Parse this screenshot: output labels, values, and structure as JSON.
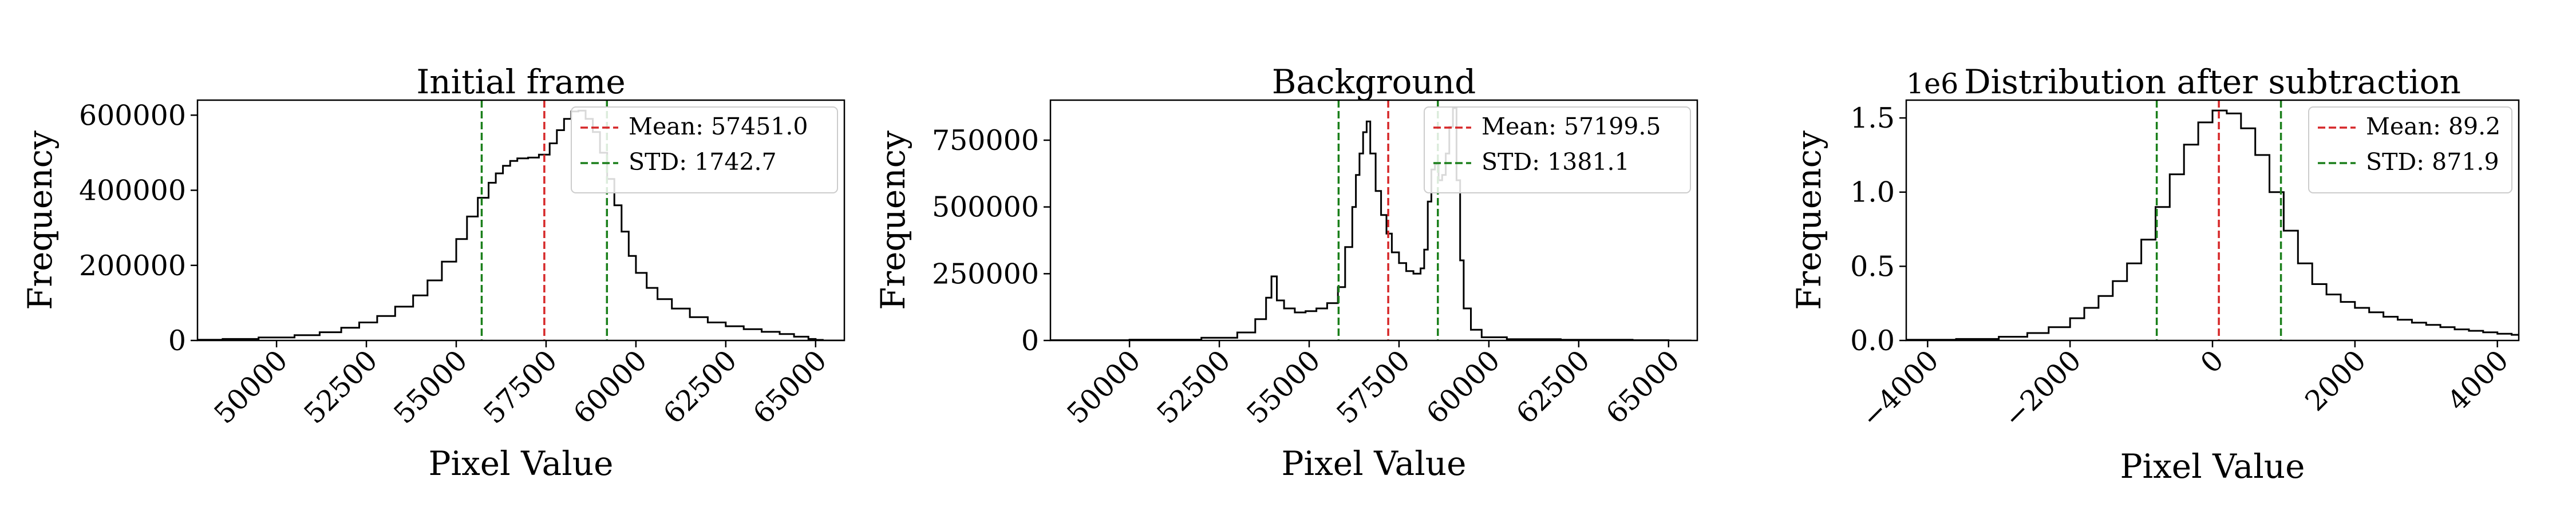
{
  "chart_data": [
    {
      "type": "histogram",
      "title": "Initial frame",
      "xlabel": "Pixel Value",
      "ylabel": "Frequency",
      "xlim": [
        47800,
        65800
      ],
      "ylim": [
        0,
        640000
      ],
      "xticks": [
        "50000",
        "52500",
        "55000",
        "57500",
        "60000",
        "62500",
        "65000"
      ],
      "yticks": [
        "0",
        "200000",
        "400000",
        "600000"
      ],
      "y_offset": "",
      "legend_position": "upper right",
      "histogram": {
        "x": [
          47800,
          48500,
          49500,
          50500,
          51200,
          51800,
          52300,
          52800,
          53300,
          53800,
          54200,
          54600,
          55000,
          55300,
          55600,
          55900,
          56100,
          56300,
          56500,
          56700,
          57000,
          57300,
          57600,
          57800,
          58000,
          58200,
          58400,
          58600,
          58800,
          59000,
          59200,
          59400,
          59600,
          59800,
          60000,
          60300,
          60600,
          61000,
          61500,
          62000,
          62500,
          63000,
          63500,
          64000,
          64400,
          64800,
          65000,
          65200
        ],
        "y": [
          2000,
          4000,
          8000,
          14000,
          22000,
          34000,
          48000,
          65000,
          90000,
          120000,
          160000,
          210000,
          270000,
          330000,
          380000,
          420000,
          445000,
          465000,
          478000,
          485000,
          487000,
          495000,
          525000,
          560000,
          590000,
          610000,
          612000,
          590000,
          555000,
          500000,
          430000,
          360000,
          290000,
          225000,
          180000,
          140000,
          110000,
          85000,
          62000,
          48000,
          38000,
          30000,
          23000,
          17000,
          10000,
          4000,
          1500,
          0
        ]
      },
      "lines": [
        {
          "name": "Mean: 57451.0",
          "x": 57451.0,
          "color": "#d62728",
          "style": "dashed"
        },
        {
          "name": "STD: 1742.7",
          "x": [
            55708.3,
            59193.7
          ],
          "color": "#1a7f1a",
          "style": "dashed"
        }
      ]
    },
    {
      "type": "histogram",
      "title": "Background",
      "xlabel": "Pixel Value",
      "ylabel": "Frequency",
      "xlim": [
        47800,
        65800
      ],
      "ylim": [
        0,
        900000
      ],
      "xticks": [
        "50000",
        "52500",
        "55000",
        "57500",
        "60000",
        "62500",
        "65000"
      ],
      "yticks": [
        "0",
        "250000",
        "500000",
        "750000"
      ],
      "y_offset": "",
      "legend_position": "upper right",
      "histogram": {
        "x": [
          47800,
          50000,
          52000,
          53000,
          53500,
          53800,
          53950,
          54100,
          54300,
          54600,
          54900,
          55200,
          55500,
          55800,
          56000,
          56200,
          56300,
          56400,
          56500,
          56600,
          56700,
          56850,
          57000,
          57150,
          57300,
          57500,
          57700,
          57900,
          58100,
          58200,
          58300,
          58400,
          58500,
          58600,
          58700,
          58800,
          58900,
          59000,
          59100,
          59200,
          59300,
          59500,
          59800,
          60500,
          62000,
          64000,
          65000
        ],
        "y": [
          1000,
          3000,
          10000,
          30000,
          80000,
          160000,
          240000,
          150000,
          120000,
          105000,
          110000,
          120000,
          140000,
          200000,
          350000,
          500000,
          620000,
          700000,
          780000,
          820000,
          700000,
          560000,
          470000,
          400000,
          330000,
          290000,
          260000,
          250000,
          270000,
          340000,
          520000,
          640000,
          660000,
          600000,
          620000,
          700000,
          800000,
          870000,
          600000,
          300000,
          120000,
          40000,
          12000,
          5000,
          2500,
          1000,
          0
        ]
      },
      "lines": [
        {
          "name": "Mean: 57199.5",
          "x": 57199.5,
          "color": "#d62728",
          "style": "dashed"
        },
        {
          "name": "STD: 1381.1",
          "x": [
            55818.4,
            58580.6
          ],
          "color": "#1a7f1a",
          "style": "dashed"
        }
      ]
    },
    {
      "type": "histogram",
      "title": "Distribution after subtraction",
      "xlabel": "Pixel Value",
      "ylabel": "Frequency",
      "xlim": [
        -4300,
        4300
      ],
      "ylim": [
        0,
        1620000
      ],
      "xticks": [
        "−4000",
        "−2000",
        "0",
        "2000",
        "4000"
      ],
      "yticks": [
        "0.0",
        "0.5",
        "1.0",
        "1.5"
      ],
      "y_offset": "1e6",
      "legend_position": "upper right",
      "histogram": {
        "x": [
          -4300,
          -3600,
          -3000,
          -2600,
          -2300,
          -2000,
          -1800,
          -1600,
          -1400,
          -1200,
          -1000,
          -800,
          -600,
          -400,
          -200,
          0,
          200,
          400,
          600,
          800,
          1000,
          1200,
          1400,
          1600,
          1800,
          2000,
          2200,
          2400,
          2600,
          2800,
          3000,
          3200,
          3400,
          3600,
          3800,
          4000,
          4200
        ],
        "y": [
          5000,
          10000,
          25000,
          50000,
          90000,
          150000,
          220000,
          300000,
          400000,
          520000,
          680000,
          900000,
          1120000,
          1320000,
          1470000,
          1550000,
          1530000,
          1430000,
          1250000,
          1000000,
          740000,
          520000,
          380000,
          310000,
          260000,
          220000,
          190000,
          160000,
          140000,
          120000,
          105000,
          90000,
          75000,
          65000,
          55000,
          45000,
          38000
        ]
      },
      "lines": [
        {
          "name": "Mean: 89.2",
          "x": 89.2,
          "color": "#d62728",
          "style": "dashed"
        },
        {
          "name": "STD: 871.9",
          "x": [
            -782.7,
            961.1
          ],
          "color": "#1a7f1a",
          "style": "dashed"
        }
      ]
    }
  ]
}
